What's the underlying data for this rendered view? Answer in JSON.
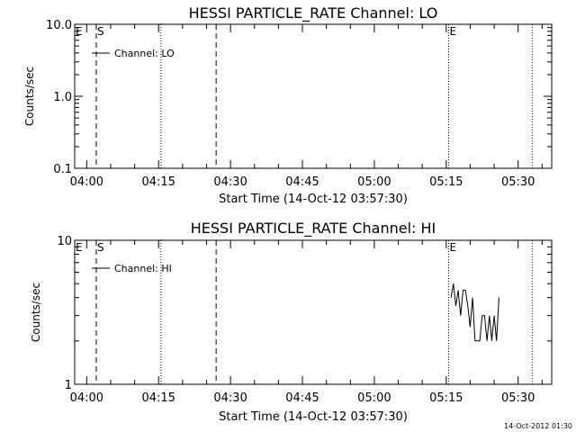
{
  "chart_data": [
    {
      "type": "line",
      "title": "HESSI PARTICLE_RATE Channel: LO",
      "xlabel": "Start Time (14-Oct-12 03:57:30)",
      "ylabel": "Counts/sec",
      "yscale": "log",
      "xlim": [
        "03:57:30",
        "05:37:00"
      ],
      "ylim": [
        0.1,
        10.0
      ],
      "x_ticks": [
        "04:00",
        "04:15",
        "04:30",
        "04:45",
        "05:00",
        "05:15",
        "05:30"
      ],
      "y_ticks": [
        0.1,
        1.0,
        10.0
      ],
      "y_tick_labels": [
        "0.1",
        "1.0",
        "10.0"
      ],
      "grid": false,
      "legend": {
        "position": "top-left",
        "entries": [
          "Channel: LO"
        ]
      },
      "vlines": [
        {
          "time": "03:57:30",
          "style": "dotted",
          "label": "E"
        },
        {
          "time": "04:02:00",
          "style": "dashed",
          "label": "S"
        },
        {
          "time": "04:15:30",
          "style": "dotted",
          "label": ""
        },
        {
          "time": "04:27:00",
          "style": "dashed",
          "label": ""
        },
        {
          "time": "05:15:30",
          "style": "dotted",
          "label": "E"
        },
        {
          "time": "05:33:00",
          "style": "dotted",
          "label": ""
        }
      ],
      "series": [
        {
          "values": []
        }
      ]
    },
    {
      "type": "line",
      "title": "HESSI PARTICLE_RATE Channel: HI",
      "xlabel": "Start Time (14-Oct-12 03:57:30)",
      "ylabel": "Counts/sec",
      "yscale": "log",
      "xlim": [
        "03:57:30",
        "05:37:00"
      ],
      "ylim": [
        1,
        10
      ],
      "x_ticks": [
        "04:00",
        "04:15",
        "04:30",
        "04:45",
        "05:00",
        "05:15",
        "05:30"
      ],
      "y_ticks": [
        1,
        10
      ],
      "y_tick_labels": [
        "1",
        "10"
      ],
      "grid": false,
      "legend": {
        "position": "top-left",
        "entries": [
          "Channel: HI"
        ]
      },
      "vlines": [
        {
          "time": "03:57:30",
          "style": "dotted",
          "label": "E"
        },
        {
          "time": "04:02:00",
          "style": "dashed",
          "label": "S"
        },
        {
          "time": "04:15:30",
          "style": "dotted",
          "label": ""
        },
        {
          "time": "04:27:00",
          "style": "dashed",
          "label": ""
        },
        {
          "time": "05:15:30",
          "style": "dotted",
          "label": "E"
        },
        {
          "time": "05:33:00",
          "style": "dotted",
          "label": ""
        }
      ],
      "series": [
        {
          "x": [
            "05:16:00",
            "05:16:30",
            "05:17:00",
            "05:17:30",
            "05:18:00",
            "05:18:30",
            "05:19:00",
            "05:19:30",
            "05:20:00",
            "05:20:30",
            "05:21:00",
            "05:21:30",
            "05:22:00",
            "05:22:30",
            "05:23:00",
            "05:23:30",
            "05:24:00",
            "05:24:30",
            "05:25:00",
            "05:25:30",
            "05:26:00"
          ],
          "values": [
            4.0,
            5.0,
            3.5,
            4.5,
            3.0,
            4.5,
            4.5,
            3.5,
            2.5,
            4.0,
            2.0,
            2.0,
            2.0,
            3.0,
            3.0,
            2.0,
            3.0,
            2.0,
            3.0,
            2.0,
            4.0
          ]
        }
      ]
    }
  ],
  "footer": {
    "timestamp": "14-Oct-2012 01:30"
  }
}
